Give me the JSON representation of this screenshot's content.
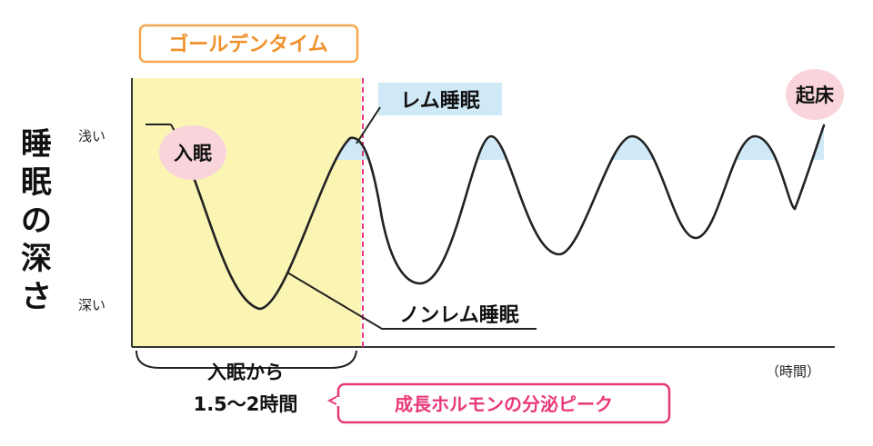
{
  "y_axis": {
    "title": "睡眠の深さ",
    "shallow_label": "浅い",
    "deep_label": "深い"
  },
  "x_axis": {
    "label": "（時間）"
  },
  "labels": {
    "golden_time": "ゴールデンタイム",
    "rem_sleep": "レム睡眠",
    "non_rem_sleep": "ノンレム睡眠",
    "fall_asleep": "入眠",
    "wake_up": "起床",
    "from_sleep_line1": "入眠から",
    "from_sleep_line2": "1.5〜2時間",
    "growth_hormone_peak": "成長ホルモンの分泌ピーク"
  },
  "colors": {
    "golden_fill": "#fbf5b4",
    "golden_border": "#f3a74e",
    "rem_fill": "#cfe9f7",
    "peak_pink": "#e8397a",
    "bubble_pink": "#f9d5db",
    "curve": "#222222"
  }
}
